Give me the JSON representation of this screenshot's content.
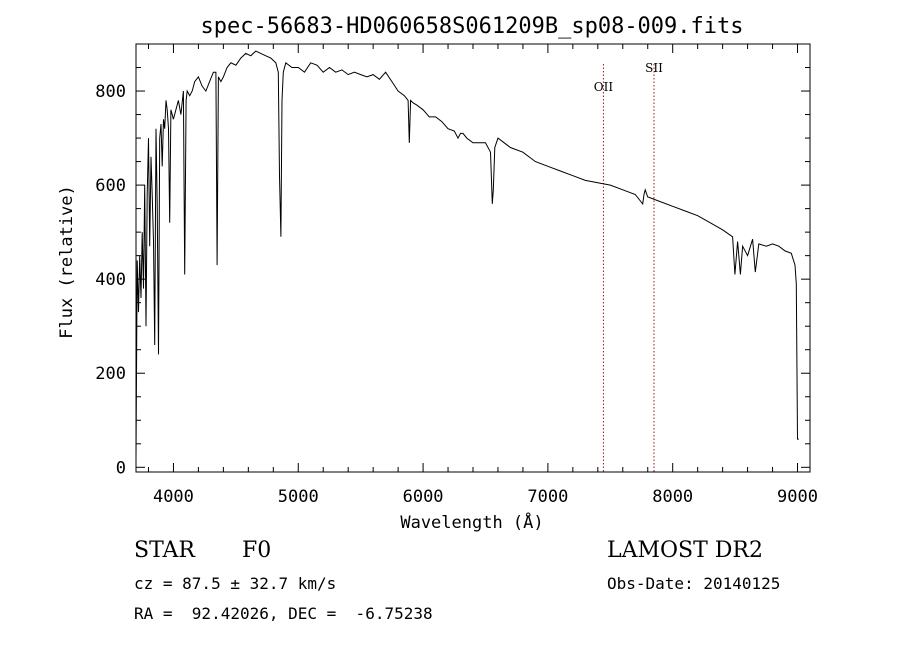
{
  "chart_data": {
    "type": "line",
    "title": "spec-56683-HD060658S061209B_sp08-009.fits",
    "xlabel": "Wavelength (Å)",
    "ylabel": "Flux (relative)",
    "xlim": [
      3700,
      9100
    ],
    "ylim": [
      -10,
      900
    ],
    "x_ticks": [
      4000,
      5000,
      6000,
      7000,
      8000,
      9000
    ],
    "y_ticks": [
      0,
      200,
      400,
      600,
      800
    ],
    "x_tick_labels": [
      "4000",
      "5000",
      "6000",
      "7000",
      "8000",
      "9000"
    ],
    "y_tick_labels": [
      "0",
      "200",
      "400",
      "600",
      "800"
    ],
    "grid": false,
    "series": [
      {
        "color": "#000000",
        "x": [
          3700,
          3710,
          3720,
          3730,
          3740,
          3750,
          3760,
          3770,
          3780,
          3790,
          3800,
          3810,
          3820,
          3830,
          3840,
          3850,
          3860,
          3870,
          3880,
          3890,
          3900,
          3910,
          3920,
          3930,
          3940,
          3950,
          3960,
          3970,
          3980,
          3990,
          4000,
          4020,
          4040,
          4060,
          4080,
          4090,
          4101,
          4110,
          4130,
          4150,
          4170,
          4200,
          4230,
          4260,
          4290,
          4320,
          4340,
          4350,
          4360,
          4380,
          4400,
          4430,
          4460,
          4500,
          4540,
          4580,
          4620,
          4660,
          4700,
          4740,
          4780,
          4820,
          4840,
          4850,
          4861,
          4870,
          4880,
          4900,
          4950,
          5000,
          5050,
          5100,
          5150,
          5200,
          5250,
          5300,
          5350,
          5400,
          5450,
          5500,
          5550,
          5600,
          5650,
          5700,
          5750,
          5800,
          5850,
          5880,
          5890,
          5900,
          5920,
          5950,
          6000,
          6050,
          6100,
          6150,
          6200,
          6250,
          6280,
          6300,
          6320,
          6350,
          6400,
          6450,
          6500,
          6540,
          6555,
          6563,
          6575,
          6600,
          6650,
          6700,
          6800,
          6900,
          7000,
          7100,
          7200,
          7300,
          7400,
          7500,
          7600,
          7700,
          7760,
          7770,
          7780,
          7800,
          7900,
          8000,
          8100,
          8200,
          8300,
          8400,
          8480,
          8498,
          8520,
          8542,
          8560,
          8600,
          8640,
          8662,
          8690,
          8750,
          8800,
          8850,
          8900,
          8950,
          8980,
          8990,
          9000,
          9010
        ],
        "y": [
          20,
          440,
          330,
          450,
          360,
          500,
          380,
          600,
          300,
          580,
          700,
          470,
          660,
          580,
          480,
          260,
          720,
          560,
          240,
          700,
          730,
          640,
          740,
          720,
          780,
          760,
          720,
          520,
          760,
          750,
          740,
          760,
          780,
          750,
          800,
          410,
          780,
          800,
          790,
          800,
          820,
          830,
          810,
          800,
          820,
          840,
          840,
          430,
          830,
          820,
          830,
          850,
          860,
          855,
          870,
          880,
          875,
          885,
          880,
          875,
          870,
          860,
          840,
          620,
          490,
          780,
          840,
          860,
          850,
          850,
          840,
          860,
          855,
          840,
          850,
          840,
          845,
          835,
          840,
          835,
          830,
          835,
          825,
          840,
          820,
          800,
          790,
          780,
          690,
          780,
          775,
          770,
          760,
          745,
          745,
          735,
          720,
          715,
          700,
          710,
          710,
          700,
          690,
          690,
          690,
          670,
          560,
          590,
          680,
          700,
          690,
          680,
          670,
          650,
          640,
          630,
          620,
          610,
          605,
          600,
          590,
          580,
          560,
          580,
          590,
          575,
          565,
          555,
          545,
          535,
          520,
          505,
          490,
          410,
          480,
          410,
          470,
          450,
          485,
          415,
          475,
          470,
          475,
          470,
          460,
          455,
          430,
          390,
          60,
          60
        ]
      }
    ],
    "annotations": [
      {
        "label": "OII",
        "x": 7445,
        "label_y": 800
      },
      {
        "label": "SII",
        "x": 7850,
        "label_y": 840
      }
    ]
  },
  "info": {
    "object_class": "STAR",
    "subclass": "F0",
    "survey": "LAMOST DR2",
    "velocity": "cz = 87.5 ± 32.7 km/s",
    "obs_date": "Obs-Date: 20140125",
    "coords": "RA =  92.42026, DEC =  -6.75238"
  }
}
